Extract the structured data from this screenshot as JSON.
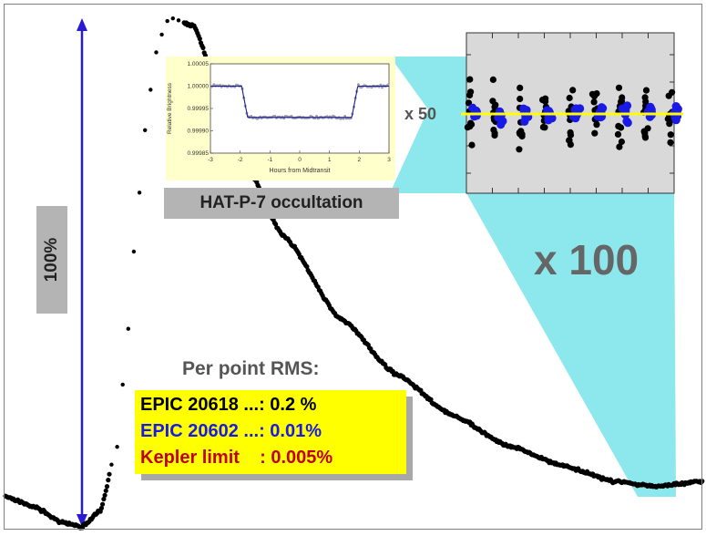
{
  "chart_data": [
    {
      "type": "scatter",
      "name_shown": false,
      "title": "",
      "xlabel": "",
      "ylabel": "",
      "description_marks": "phase-folded light curve, black points",
      "curve_nodes": [
        {
          "phase": 0.0,
          "flux": 0.06
        },
        {
          "phase": 0.04,
          "flux": 0.04
        },
        {
          "phase": 0.08,
          "flux": 0.01
        },
        {
          "phase": 0.11,
          "flux": 0.0
        },
        {
          "phase": 0.135,
          "flux": 0.03
        },
        {
          "phase": 0.16,
          "flux": 0.16
        },
        {
          "phase": 0.175,
          "flux": 0.38
        },
        {
          "phase": 0.19,
          "flux": 0.64
        },
        {
          "phase": 0.205,
          "flux": 0.84
        },
        {
          "phase": 0.22,
          "flux": 0.96
        },
        {
          "phase": 0.235,
          "flux": 1.0
        },
        {
          "phase": 0.27,
          "flux": 0.985
        },
        {
          "phase": 0.3,
          "flux": 0.88
        },
        {
          "phase": 0.34,
          "flux": 0.72
        },
        {
          "phase": 0.4,
          "flux": 0.57
        },
        {
          "phase": 0.48,
          "flux": 0.41
        },
        {
          "phase": 0.56,
          "flux": 0.3
        },
        {
          "phase": 0.64,
          "flux": 0.22
        },
        {
          "phase": 0.72,
          "flux": 0.16
        },
        {
          "phase": 0.8,
          "flux": 0.12
        },
        {
          "phase": 0.87,
          "flux": 0.09
        },
        {
          "phase": 0.93,
          "flux": 0.08
        },
        {
          "phase": 1.0,
          "flux": 0.09
        }
      ],
      "sparse_phase_range": [
        0.15,
        0.255
      ],
      "amplitude_label": "100%"
    },
    {
      "type": "scatter",
      "title": "HAT-P-7 occultation",
      "xlabel": "Hours from Midtransit",
      "ylabel": "Relative Brightness",
      "xlim": [
        -3,
        3
      ],
      "ylim": [
        0.99985,
        1.00005
      ],
      "xticks": [
        "-3",
        "-2",
        "-1",
        "0",
        "1",
        "2",
        "3"
      ],
      "yticks": [
        "1.00005",
        "1.00000",
        "0.99995",
        "0.99990",
        "0.99985"
      ],
      "model": {
        "out_level": 1.0,
        "in_level": 0.99993,
        "ingress": [
          -1.95,
          -1.75
        ],
        "egress": [
          1.75,
          1.95
        ]
      },
      "scale_label": "x 50"
    },
    {
      "type": "scatter",
      "description": "zoomed residuals, black = EPIC 20618, blue = EPIC 20602",
      "columns": 9,
      "level": 0.0,
      "black_spread": 1.0,
      "blue_spread": 0.25,
      "scale_label": "x 100"
    }
  ],
  "rms": {
    "title": "Per point RMS:",
    "rows": [
      {
        "text": "EPIC 20618 ...: 0.2 %",
        "color": "#000000"
      },
      {
        "text": "EPIC 20602 ...: 0.01%",
        "color": "#1a1ae6"
      },
      {
        "text": "Kepler limit    : 0.005%",
        "color": "#c0001a"
      }
    ]
  },
  "labels": {
    "occultation": "HAT-P-7 occultation",
    "amplitude": "100%",
    "zoom_small": "x 50",
    "zoom_large": "x 100"
  },
  "colors": {
    "points": "#000000",
    "blue_points": "#1a1ae6",
    "arrow": "#2a1ad6",
    "highlight": "#7fe6ea",
    "inset_bg": "#ffffcc",
    "zoom_bg": "#d9d9d9",
    "yellow_line": "#ffff00"
  }
}
